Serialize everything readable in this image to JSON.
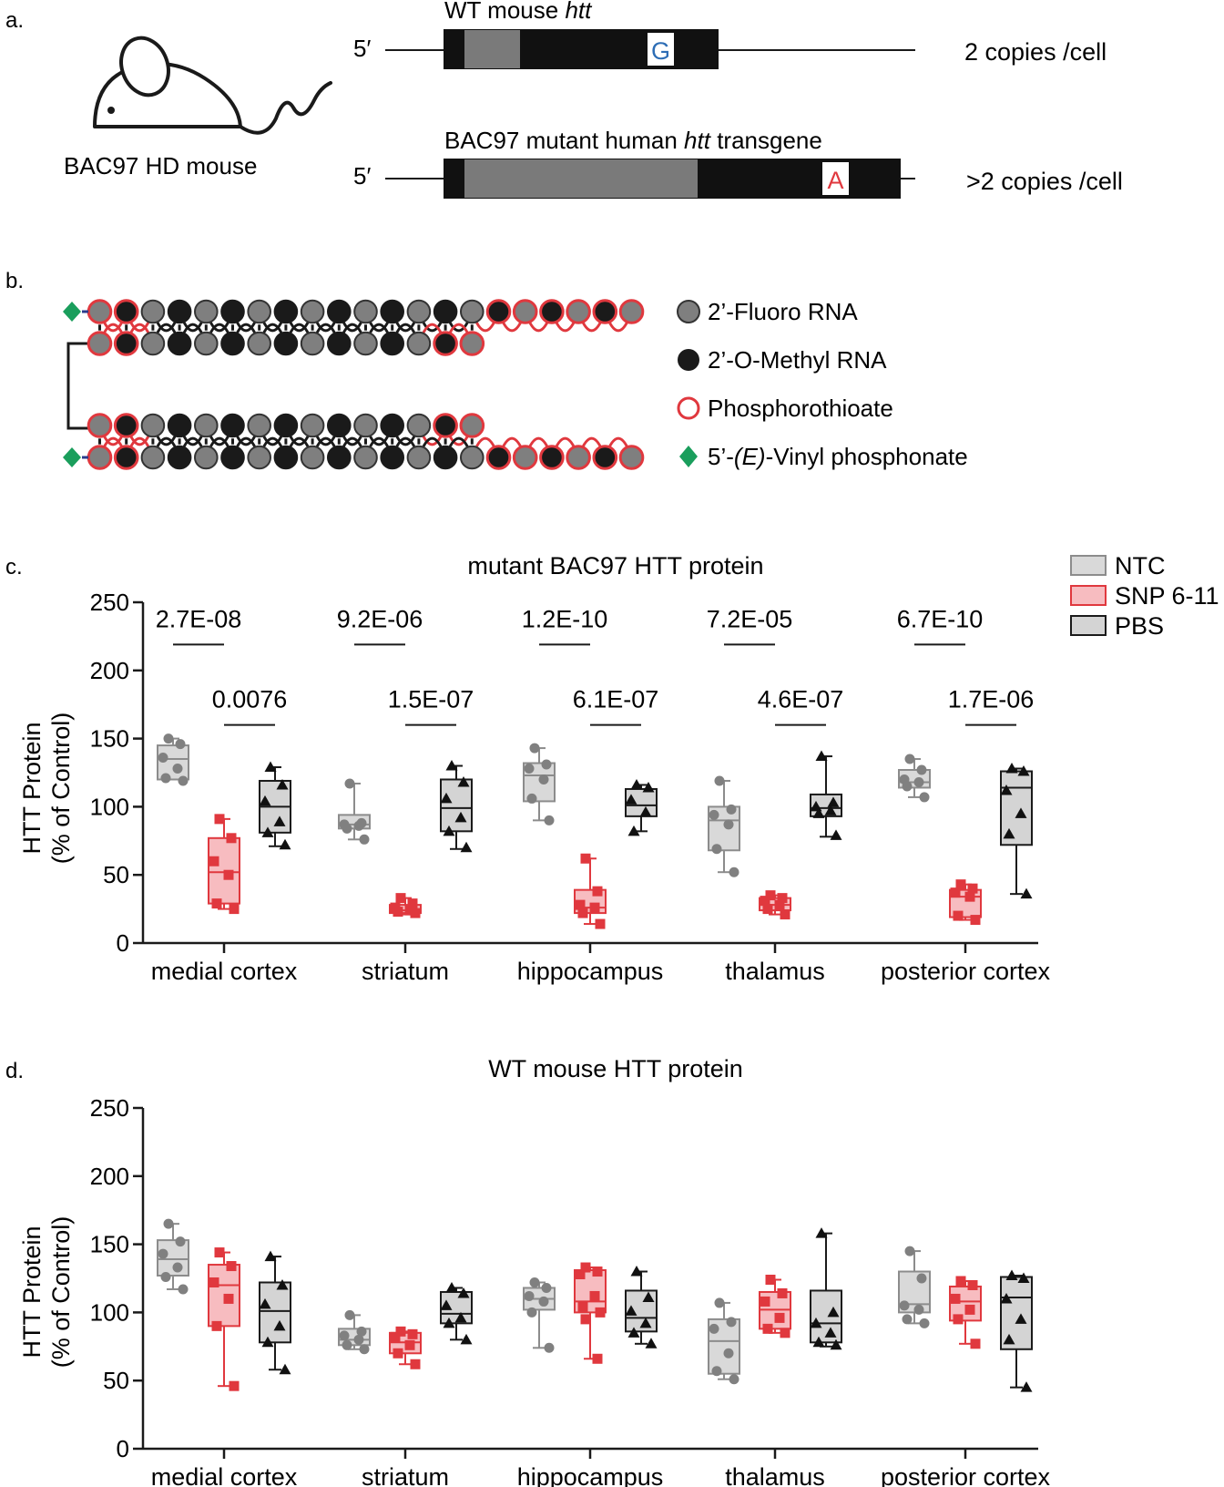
{
  "colors": {
    "ntc_fill": "#d9d9d9",
    "ntc_stroke": "#8c8c8c",
    "ntc_point": "#808080",
    "snp_fill": "#f7bcc0",
    "snp_stroke": "#e0383e",
    "snp_point": "#e0383e",
    "pbs_fill": "#d4d4d4",
    "pbs_stroke": "#1a1a1a",
    "pbs_point": "#111111",
    "fluoro": "#7f7f7f",
    "methyl": "#1a1a1a",
    "phosphorothioate": "#e0383e",
    "vinyl": "#1a9e5c",
    "base_g": "#2d6db5",
    "base_a": "#e0383e"
  },
  "panel_a": {
    "label": "a.",
    "mouse_label": "BAC97 HD mouse",
    "wt": {
      "title_prefix": "WT mouse ",
      "title_italic": "htt",
      "five_prime": "5′",
      "base": "G",
      "copies": "2 copies /cell"
    },
    "mut": {
      "title_prefix": "BAC97 mutant human ",
      "title_italic": "htt",
      "title_suffix": " transgene",
      "five_prime": "5′",
      "base": "A",
      "copies": ">2 copies /cell"
    }
  },
  "panel_b": {
    "label": "b.",
    "legend": [
      {
        "key": "fluoro",
        "text": "2’-Fluoro RNA"
      },
      {
        "key": "methyl",
        "text": "2’-O-Methyl RNA"
      },
      {
        "key": "ps",
        "text": "Phosphorothioate"
      },
      {
        "key": "vp",
        "text_prefix": "5’-",
        "text_italic": "(E)",
        "text_suffix": "-Vinyl phosphonate"
      }
    ]
  },
  "chart_data": [
    {
      "panel": "c.",
      "type": "box",
      "title": "mutant BAC97 HTT protein",
      "ylabel": "HTT Protein (% of Control)",
      "ylabel_lines": [
        "HTT Protein",
        "(% of Control)"
      ],
      "ylim": [
        0,
        250
      ],
      "yticks": [
        0,
        50,
        100,
        150,
        200,
        250
      ],
      "categories": [
        "medial cortex",
        "striatum",
        "hippocampus",
        "thalamus",
        "posterior cortex"
      ],
      "legend": [
        "NTC",
        "SNP 6-11",
        "PBS"
      ],
      "legend_position": "top-right",
      "series": [
        {
          "name": "NTC",
          "boxes": [
            {
              "min": 120,
              "q1": 120,
              "median": 135,
              "q3": 145,
              "max": 150,
              "points": [
                150,
                146,
                136,
                128,
                121,
                119
              ]
            },
            {
              "min": 76,
              "q1": 84,
              "median": 87,
              "q3": 94,
              "max": 117,
              "points": [
                117,
                88,
                87,
                86,
                84,
                76
              ]
            },
            {
              "min": 90,
              "q1": 104,
              "median": 123,
              "q3": 132,
              "max": 143,
              "points": [
                143,
                131,
                128,
                120,
                106,
                90
              ]
            },
            {
              "min": 52,
              "q1": 68,
              "median": 90,
              "q3": 100,
              "max": 119,
              "points": [
                119,
                98,
                94,
                87,
                69,
                52
              ]
            },
            {
              "min": 107,
              "q1": 114,
              "median": 118,
              "q3": 127,
              "max": 135,
              "points": [
                135,
                127,
                120,
                118,
                115,
                107
              ]
            }
          ]
        },
        {
          "name": "SNP 6-11",
          "boxes": [
            {
              "min": 25,
              "q1": 29,
              "median": 52,
              "q3": 77,
              "max": 91,
              "points": [
                91,
                77,
                60,
                50,
                29,
                25
              ]
            },
            {
              "min": 21,
              "q1": 22,
              "median": 24,
              "q3": 28,
              "max": 33,
              "points": [
                33,
                29,
                26,
                24,
                23,
                22
              ]
            },
            {
              "min": 14,
              "q1": 22,
              "median": 26,
              "q3": 39,
              "max": 62,
              "points": [
                62,
                38,
                28,
                26,
                22,
                14
              ]
            },
            {
              "min": 21,
              "q1": 24,
              "median": 28,
              "q3": 33,
              "max": 35,
              "points": [
                35,
                33,
                31,
                28,
                25,
                21
              ]
            },
            {
              "min": 17,
              "q1": 19,
              "median": 34,
              "q3": 39,
              "max": 43,
              "points": [
                43,
                40,
                37,
                34,
                20,
                17
              ]
            }
          ]
        },
        {
          "name": "PBS",
          "boxes": [
            {
              "min": 71,
              "q1": 81,
              "median": 100,
              "q3": 119,
              "max": 129,
              "points": [
                129,
                116,
                104,
                89,
                81,
                72
              ]
            },
            {
              "min": 69,
              "q1": 82,
              "median": 99,
              "q3": 120,
              "max": 130,
              "points": [
                130,
                118,
                106,
                92,
                82,
                70
              ]
            },
            {
              "min": 82,
              "q1": 93,
              "median": 101,
              "q3": 113,
              "max": 116,
              "points": [
                116,
                114,
                105,
                96,
                82
              ]
            },
            {
              "min": 78,
              "q1": 93,
              "median": 99,
              "q3": 109,
              "max": 137,
              "points": [
                137,
                103,
                100,
                97,
                95,
                79
              ]
            },
            {
              "min": 36,
              "q1": 72,
              "median": 114,
              "q3": 126,
              "max": 128,
              "points": [
                128,
                126,
                112,
                95,
                80,
                36
              ]
            }
          ]
        }
      ],
      "pvalues": [
        {
          "category": 0,
          "pair": "NTC-SNP",
          "text": "2.7E-08"
        },
        {
          "category": 0,
          "pair": "SNP-PBS",
          "text": "0.0076"
        },
        {
          "category": 1,
          "pair": "NTC-SNP",
          "text": "9.2E-06"
        },
        {
          "category": 1,
          "pair": "SNP-PBS",
          "text": "1.5E-07"
        },
        {
          "category": 2,
          "pair": "NTC-SNP",
          "text": "1.2E-10"
        },
        {
          "category": 2,
          "pair": "SNP-PBS",
          "text": "6.1E-07"
        },
        {
          "category": 3,
          "pair": "NTC-SNP",
          "text": "7.2E-05"
        },
        {
          "category": 3,
          "pair": "SNP-PBS",
          "text": "4.6E-07"
        },
        {
          "category": 4,
          "pair": "NTC-SNP",
          "text": "6.7E-10"
        },
        {
          "category": 4,
          "pair": "SNP-PBS",
          "text": "1.7E-06"
        }
      ]
    },
    {
      "panel": "d.",
      "type": "box",
      "title": "WT mouse HTT protein",
      "ylabel": "HTT Protein (% of Control)",
      "ylabel_lines": [
        "HTT Protein",
        "(% of Control)"
      ],
      "ylim": [
        0,
        250
      ],
      "yticks": [
        0,
        50,
        100,
        150,
        200,
        250
      ],
      "categories": [
        "medial cortex",
        "striatum",
        "hippocampus",
        "thalamus",
        "posterior cortex"
      ],
      "series": [
        {
          "name": "NTC",
          "boxes": [
            {
              "min": 117,
              "q1": 127,
              "median": 139,
              "q3": 153,
              "max": 165,
              "points": [
                165,
                152,
                143,
                133,
                126,
                117
              ]
            },
            {
              "min": 73,
              "q1": 76,
              "median": 80,
              "q3": 88,
              "max": 98,
              "points": [
                98,
                86,
                83,
                80,
                76,
                73
              ]
            },
            {
              "min": 74,
              "q1": 102,
              "median": 110,
              "q3": 118,
              "max": 122,
              "points": [
                122,
                118,
                112,
                108,
                100,
                74
              ]
            },
            {
              "min": 51,
              "q1": 55,
              "median": 79,
              "q3": 95,
              "max": 107,
              "points": [
                107,
                93,
                88,
                70,
                57,
                51
              ]
            },
            {
              "min": 92,
              "q1": 100,
              "median": 106,
              "q3": 130,
              "max": 145,
              "points": [
                145,
                125,
                105,
                102,
                95,
                92
              ]
            }
          ]
        },
        {
          "name": "SNP 6-11",
          "boxes": [
            {
              "min": 46,
              "q1": 90,
              "median": 120,
              "q3": 135,
              "max": 144,
              "points": [
                144,
                134,
                122,
                110,
                90,
                46
              ]
            },
            {
              "min": 62,
              "q1": 70,
              "median": 78,
              "q3": 85,
              "max": 86,
              "points": [
                86,
                84,
                82,
                76,
                70,
                62
              ]
            },
            {
              "min": 66,
              "q1": 100,
              "median": 108,
              "q3": 131,
              "max": 133,
              "points": [
                133,
                130,
                128,
                112,
                104,
                100,
                95,
                66
              ]
            },
            {
              "min": 85,
              "q1": 88,
              "median": 102,
              "q3": 115,
              "max": 124,
              "points": [
                124,
                114,
                108,
                96,
                88,
                85
              ]
            },
            {
              "min": 77,
              "q1": 94,
              "median": 108,
              "q3": 119,
              "max": 123,
              "points": [
                123,
                120,
                110,
                102,
                95,
                77
              ]
            }
          ]
        },
        {
          "name": "PBS",
          "boxes": [
            {
              "min": 58,
              "q1": 78,
              "median": 101,
              "q3": 122,
              "max": 141,
              "points": [
                141,
                120,
                106,
                90,
                78,
                58
              ]
            },
            {
              "min": 80,
              "q1": 92,
              "median": 99,
              "q3": 115,
              "max": 118,
              "points": [
                118,
                114,
                105,
                96,
                92,
                80
              ]
            },
            {
              "min": 77,
              "q1": 86,
              "median": 96,
              "q3": 116,
              "max": 130,
              "points": [
                130,
                111,
                101,
                92,
                85,
                77
              ]
            },
            {
              "min": 75,
              "q1": 78,
              "median": 92,
              "q3": 116,
              "max": 158,
              "points": [
                158,
                100,
                92,
                85,
                78,
                76
              ]
            },
            {
              "min": 45,
              "q1": 73,
              "median": 111,
              "q3": 126,
              "max": 127,
              "points": [
                127,
                125,
                110,
                95,
                80,
                45
              ]
            }
          ]
        }
      ]
    }
  ]
}
